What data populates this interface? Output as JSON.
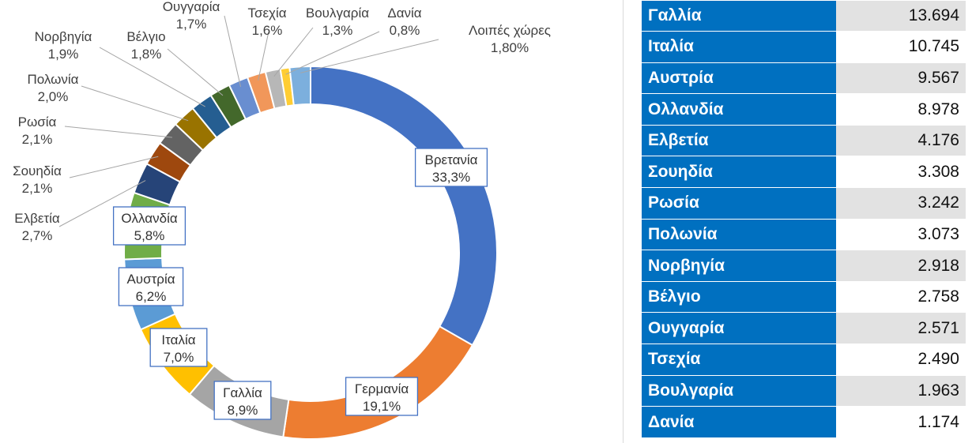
{
  "chart_data": {
    "type": "pie",
    "variant": "donut",
    "slices": [
      {
        "label": "Βρετανία",
        "value_label": "33,3%",
        "value": 33.3,
        "color": "#4472c4"
      },
      {
        "label": "Γερμανία",
        "value_label": "19,1%",
        "value": 19.1,
        "color": "#ed7d31"
      },
      {
        "label": "Γαλλία",
        "value_label": "8,9%",
        "value": 8.9,
        "color": "#a5a5a5"
      },
      {
        "label": "Ιταλία",
        "value_label": "7,0%",
        "value": 7.0,
        "color": "#ffc000"
      },
      {
        "label": "Αυστρία",
        "value_label": "6,2%",
        "value": 6.2,
        "color": "#5b9bd5"
      },
      {
        "label": "Ολλανδία",
        "value_label": "5,8%",
        "value": 5.8,
        "color": "#70ad47"
      },
      {
        "label": "Ελβετία",
        "value_label": "2,7%",
        "value": 2.7,
        "color": "#264478"
      },
      {
        "label": "Σουηδία",
        "value_label": "2,1%",
        "value": 2.1,
        "color": "#9e480e"
      },
      {
        "label": "Ρωσία",
        "value_label": "2,1%",
        "value": 2.1,
        "color": "#636363"
      },
      {
        "label": "Πολωνία",
        "value_label": "2,0%",
        "value": 2.0,
        "color": "#997300"
      },
      {
        "label": "Νορβηγία",
        "value_label": "1,9%",
        "value": 1.9,
        "color": "#255e91"
      },
      {
        "label": "Βέλγιο",
        "value_label": "1,8%",
        "value": 1.8,
        "color": "#43682b"
      },
      {
        "label": "Ουγγαρία",
        "value_label": "1,7%",
        "value": 1.7,
        "color": "#698ed0"
      },
      {
        "label": "Τσεχία",
        "value_label": "1,6%",
        "value": 1.6,
        "color": "#f1975a"
      },
      {
        "label": "Βουλγαρία",
        "value_label": "1,3%",
        "value": 1.3,
        "color": "#b7b7b7"
      },
      {
        "label": "Δανία",
        "value_label": "0,8%",
        "value": 0.8,
        "color": "#ffcd33"
      },
      {
        "label": "Λοιπές χώρες",
        "value_label": "1,80%",
        "value": 1.8,
        "color": "#7cafdd"
      }
    ]
  },
  "table": {
    "rows": [
      {
        "country": "Γαλλία",
        "value": "13.694"
      },
      {
        "country": "Ιταλία",
        "value": "10.745"
      },
      {
        "country": "Αυστρία",
        "value": "9.567"
      },
      {
        "country": "Ολλανδία",
        "value": "8.978"
      },
      {
        "country": "Ελβετία",
        "value": "4.176"
      },
      {
        "country": "Σουηδία",
        "value": "3.308"
      },
      {
        "country": "Ρωσία",
        "value": "3.242"
      },
      {
        "country": "Πολωνία",
        "value": "3.073"
      },
      {
        "country": "Νορβηγία",
        "value": "2.918"
      },
      {
        "country": "Βέλγιο",
        "value": "2.758"
      },
      {
        "country": "Ουγγαρία",
        "value": "2.571"
      },
      {
        "country": "Τσεχία",
        "value": "2.490"
      },
      {
        "country": "Βουλγαρία",
        "value": "1.963"
      },
      {
        "country": "Δανία",
        "value": "1.174"
      }
    ]
  }
}
